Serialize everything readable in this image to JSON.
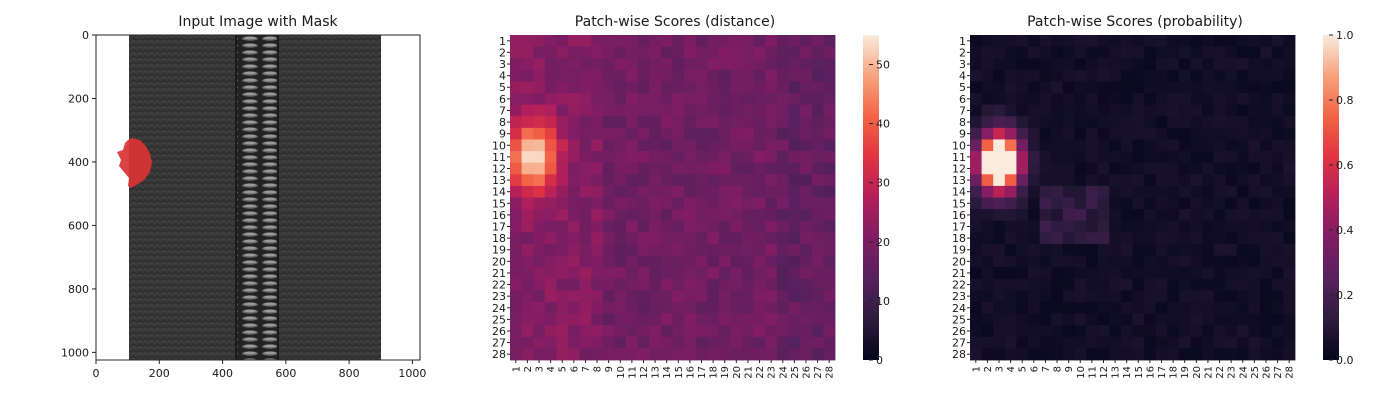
{
  "chart_data": [
    {
      "type": "image",
      "title": "Input Image with Mask",
      "xlim": [
        0,
        1024
      ],
      "ylim": [
        1024,
        0
      ],
      "x_ticks": [
        0,
        200,
        400,
        600,
        800,
        1000
      ],
      "y_ticks": [
        0,
        200,
        400,
        600,
        800,
        1000
      ],
      "mask_color": "#d83434",
      "mask_center": [
        125,
        400
      ],
      "zipper_band": [
        105,
        895
      ]
    },
    {
      "type": "heatmap",
      "title": "Patch-wise Scores (distance)",
      "rows": [
        "1",
        "2",
        "3",
        "4",
        "5",
        "6",
        "7",
        "8",
        "9",
        "10",
        "11",
        "12",
        "13",
        "14",
        "15",
        "16",
        "17",
        "18",
        "19",
        "20",
        "21",
        "22",
        "23",
        "24",
        "25",
        "26",
        "27",
        "28"
      ],
      "cols": [
        "1",
        "2",
        "3",
        "4",
        "5",
        "6",
        "7",
        "8",
        "9",
        "10",
        "11",
        "12",
        "13",
        "14",
        "15",
        "16",
        "17",
        "18",
        "19",
        "20",
        "21",
        "22",
        "23",
        "24",
        "25",
        "26",
        "27",
        "28"
      ],
      "vmin": 0,
      "vmax": 55,
      "colorbar_ticks": [
        0,
        10,
        20,
        30,
        40,
        50
      ],
      "hot_spot_center": [
        2.5,
        11
      ],
      "hot_spot_peak": 55,
      "background_level": 18
    },
    {
      "type": "heatmap",
      "title": "Patch-wise Scores (probability)",
      "rows": [
        "1",
        "2",
        "3",
        "4",
        "5",
        "6",
        "7",
        "8",
        "9",
        "10",
        "11",
        "12",
        "13",
        "14",
        "15",
        "16",
        "17",
        "18",
        "19",
        "20",
        "21",
        "22",
        "23",
        "24",
        "25",
        "26",
        "27",
        "28"
      ],
      "cols": [
        "1",
        "2",
        "3",
        "4",
        "5",
        "6",
        "7",
        "8",
        "9",
        "10",
        "11",
        "12",
        "13",
        "14",
        "15",
        "16",
        "17",
        "18",
        "19",
        "20",
        "21",
        "22",
        "23",
        "24",
        "25",
        "26",
        "27",
        "28"
      ],
      "vmin": 0.0,
      "vmax": 1.0,
      "colorbar_ticks": [
        "0.0",
        "0.2",
        "0.4",
        "0.6",
        "0.8",
        "1.0"
      ],
      "hot_spot_center": [
        3,
        11.5
      ],
      "hot_spot_peak": 1.0,
      "background_level": 0.02
    }
  ]
}
